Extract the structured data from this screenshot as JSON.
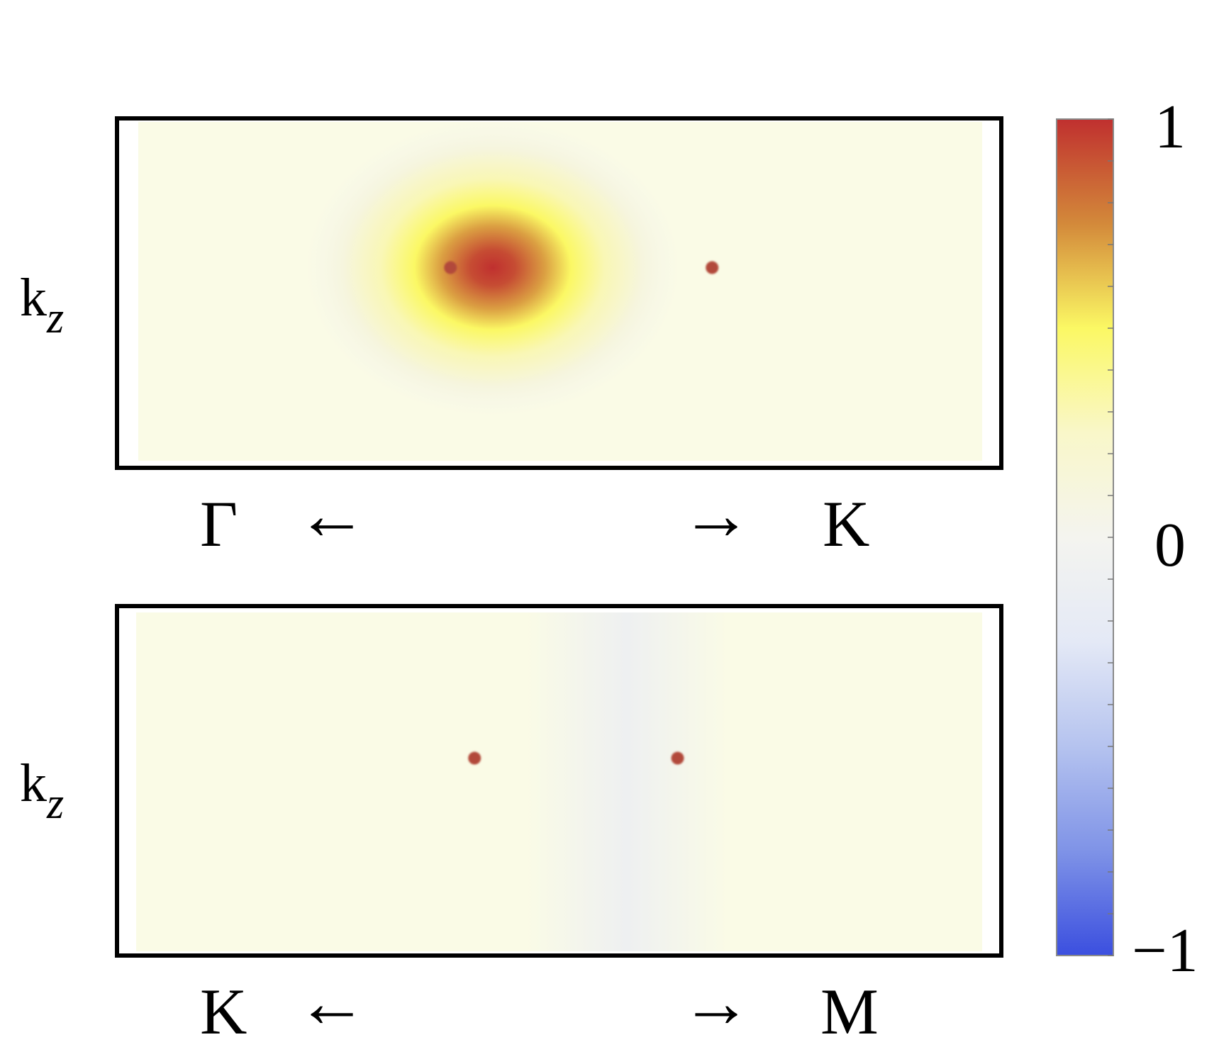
{
  "chart_data": [
    {
      "type": "heatmap",
      "panel": "top",
      "ylabel_main": "k",
      "ylabel_sub": "z",
      "x_left_label": "Γ",
      "x_right_label": "K",
      "x_left_arrow": "←",
      "x_right_arrow": "→",
      "colormap_range": [
        -1,
        1
      ],
      "features": [
        {
          "kind": "peak",
          "x": 0.42,
          "y": 0.57,
          "value": 1.0,
          "sigma_x": 0.085,
          "sigma_y": 0.19
        }
      ],
      "points": [
        {
          "x": 0.37,
          "y": 0.57
        },
        {
          "x": 0.68,
          "y": 0.57
        }
      ],
      "background_value": 0.02
    },
    {
      "type": "heatmap",
      "panel": "bottom",
      "ylabel_main": "k",
      "ylabel_sub": "z",
      "x_left_label": "K",
      "x_right_label": "M",
      "x_left_arrow": "←",
      "x_right_arrow": "→",
      "colormap_range": [
        -1,
        1
      ],
      "features": [
        {
          "kind": "valley",
          "x": 0.58,
          "y": 0.5,
          "value": -0.08,
          "sigma_x": 0.06,
          "sigma_y": 0.9
        }
      ],
      "points": [
        {
          "x": 0.4,
          "y": 0.57
        },
        {
          "x": 0.64,
          "y": 0.57
        }
      ],
      "background_value": 0.02
    }
  ],
  "colorbar": {
    "ticks": [
      "1",
      "0",
      "−1"
    ],
    "values": [
      1,
      0,
      -1
    ],
    "stops": [
      {
        "v": 1.0,
        "color": "#c0302f"
      },
      {
        "v": 0.75,
        "color": "#d3893a"
      },
      {
        "v": 0.5,
        "color": "#fbf864"
      },
      {
        "v": 0.25,
        "color": "#f9f7c9"
      },
      {
        "v": 0.0,
        "color": "#f4f4ef"
      },
      {
        "v": -0.25,
        "color": "#e4e9f6"
      },
      {
        "v": -0.5,
        "color": "#b5c3ef"
      },
      {
        "v": -0.75,
        "color": "#7f93e7"
      },
      {
        "v": -1.0,
        "color": "#3b4fdf"
      }
    ]
  },
  "colors": {
    "frame": "#000000",
    "point": "#b24a3a",
    "background": "#fafbe6"
  }
}
